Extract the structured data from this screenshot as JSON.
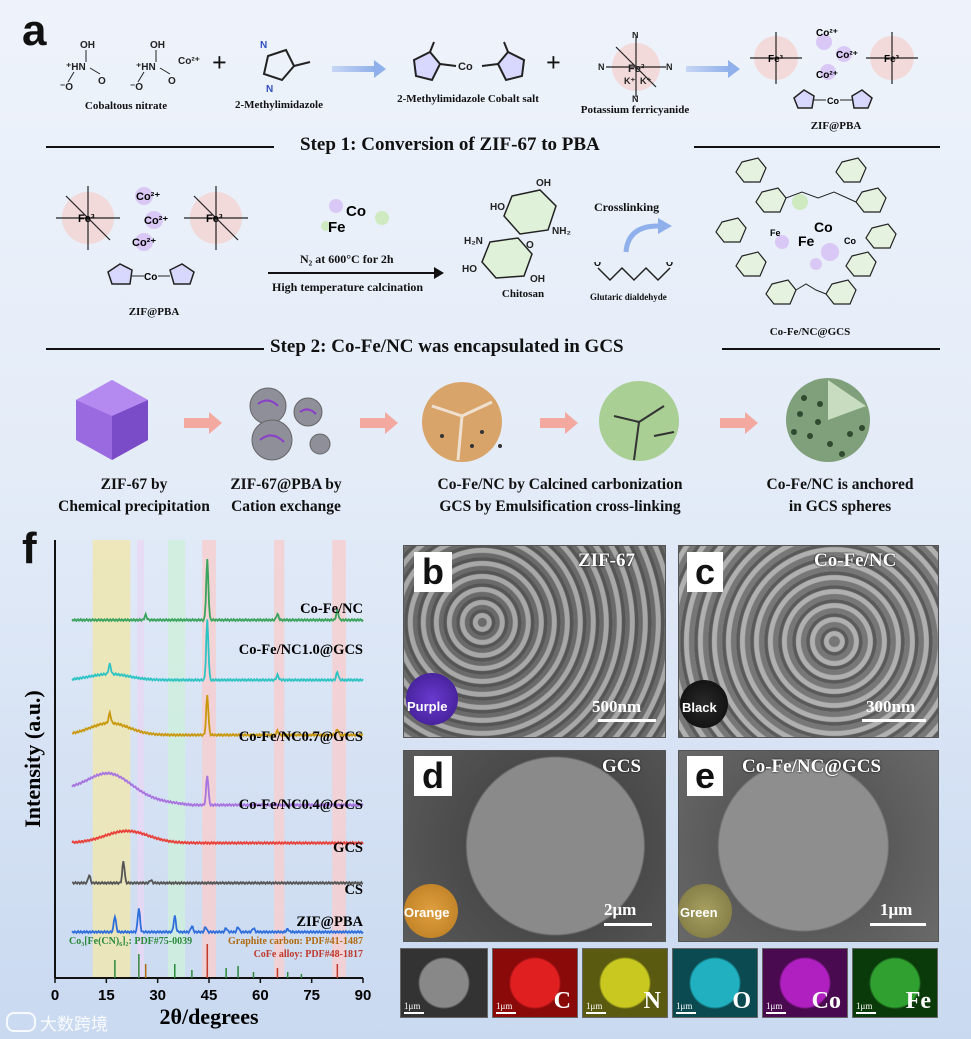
{
  "panel_a": {
    "letter": "a",
    "row1": {
      "cobaltous_nitrate": "Cobaltous nitrate",
      "methylimidazole": "2-Methylimidazole",
      "cobalt_salt": "2-Methylimidazole Cobalt salt",
      "ferricyanide": "Potassium ferricyanide",
      "zif_pba": "ZIF@PBA",
      "plus": "+",
      "co_ion": "Co²⁺"
    },
    "step1": "Step 1: Conversion of ZIF-67 to PBA",
    "row2": {
      "zif_pba": "ZIF@PBA",
      "condition_top": "N₂ at 600°C for 2h",
      "condition_bottom": "High temperature calcination",
      "chitosan": "Chitosan",
      "crosslinking": "Crosslinking",
      "glutaric": "Glutaric dialdehyde",
      "cofe_gcs": "Co-Fe/NC@GCS",
      "co": "Co",
      "fe": "Fe"
    },
    "step2": "Step 2: Co-Fe/NC was encapsulated in GCS",
    "row3": [
      {
        "line1": "ZIF-67 by",
        "line2": "Chemical precipitation"
      },
      {
        "line1": "ZIF-67@PBA by",
        "line2": "Cation exchange"
      },
      {
        "line1": "Co-Fe/NC by Calcined carbonization",
        "line2": "GCS by Emulsification cross-linking"
      },
      {
        "line1": "Co-Fe/NC is anchored",
        "line2": "in GCS spheres"
      }
    ]
  },
  "panel_f": {
    "letter": "f",
    "chart_data": {
      "type": "line",
      "xlabel": "2θ/degrees",
      "ylabel": "Intensity (a.u.)",
      "xlim": [
        0,
        90
      ],
      "xticks": [
        0,
        15,
        30,
        45,
        60,
        75,
        90
      ],
      "series": [
        {
          "name": "Co-Fe/NC",
          "color": "#3aa35c"
        },
        {
          "name": "Co-Fe/NC1.0@GCS",
          "color": "#2fc4c4"
        },
        {
          "name": "Co-Fe/NC0.7@GCS",
          "color": "#c9980e"
        },
        {
          "name": "Co-Fe/NC0.4@GCS",
          "color": "#a774e0"
        },
        {
          "name": "GCS",
          "color": "#e8413a"
        },
        {
          "name": "CS",
          "color": "#555555"
        },
        {
          "name": "ZIF@PBA",
          "color": "#2f6fdc"
        }
      ],
      "references": [
        {
          "label": "Co₃[Fe(CN)₆]₂: PDF#75-0039",
          "color": "#2a8a3a"
        },
        {
          "label": "Graphite carbon: PDF#41-1487",
          "color": "#b06a10"
        },
        {
          "label": "CoFe alloy: PDF#48-1817",
          "color": "#c0392b"
        }
      ]
    }
  },
  "panel_b": {
    "letter": "b",
    "title": "ZIF-67",
    "scale": "500nm",
    "color_label": "Purple"
  },
  "panel_c": {
    "letter": "c",
    "title": "Co-Fe/NC",
    "scale": "300nm",
    "color_label": "Black"
  },
  "panel_d": {
    "letter": "d",
    "title": "GCS",
    "scale": "2μm",
    "color_label": "Orange"
  },
  "panel_e": {
    "letter": "e",
    "title": "Co-Fe/NC@GCS",
    "scale": "1μm",
    "color_label": "Green"
  },
  "eds_maps": [
    {
      "element": "",
      "scale": "1μm",
      "color": "#3a3a3a"
    },
    {
      "element": "C",
      "scale": "1μm",
      "color": "#c81010"
    },
    {
      "element": "N",
      "scale": "1μm",
      "color": "#9a9a10"
    },
    {
      "element": "O",
      "scale": "1μm",
      "color": "#108a9a"
    },
    {
      "element": "Co",
      "scale": "1μm",
      "color": "#8a109a"
    },
    {
      "element": "Fe",
      "scale": "1μm",
      "color": "#2a8a2a"
    }
  ],
  "watermark": "大数跨境"
}
